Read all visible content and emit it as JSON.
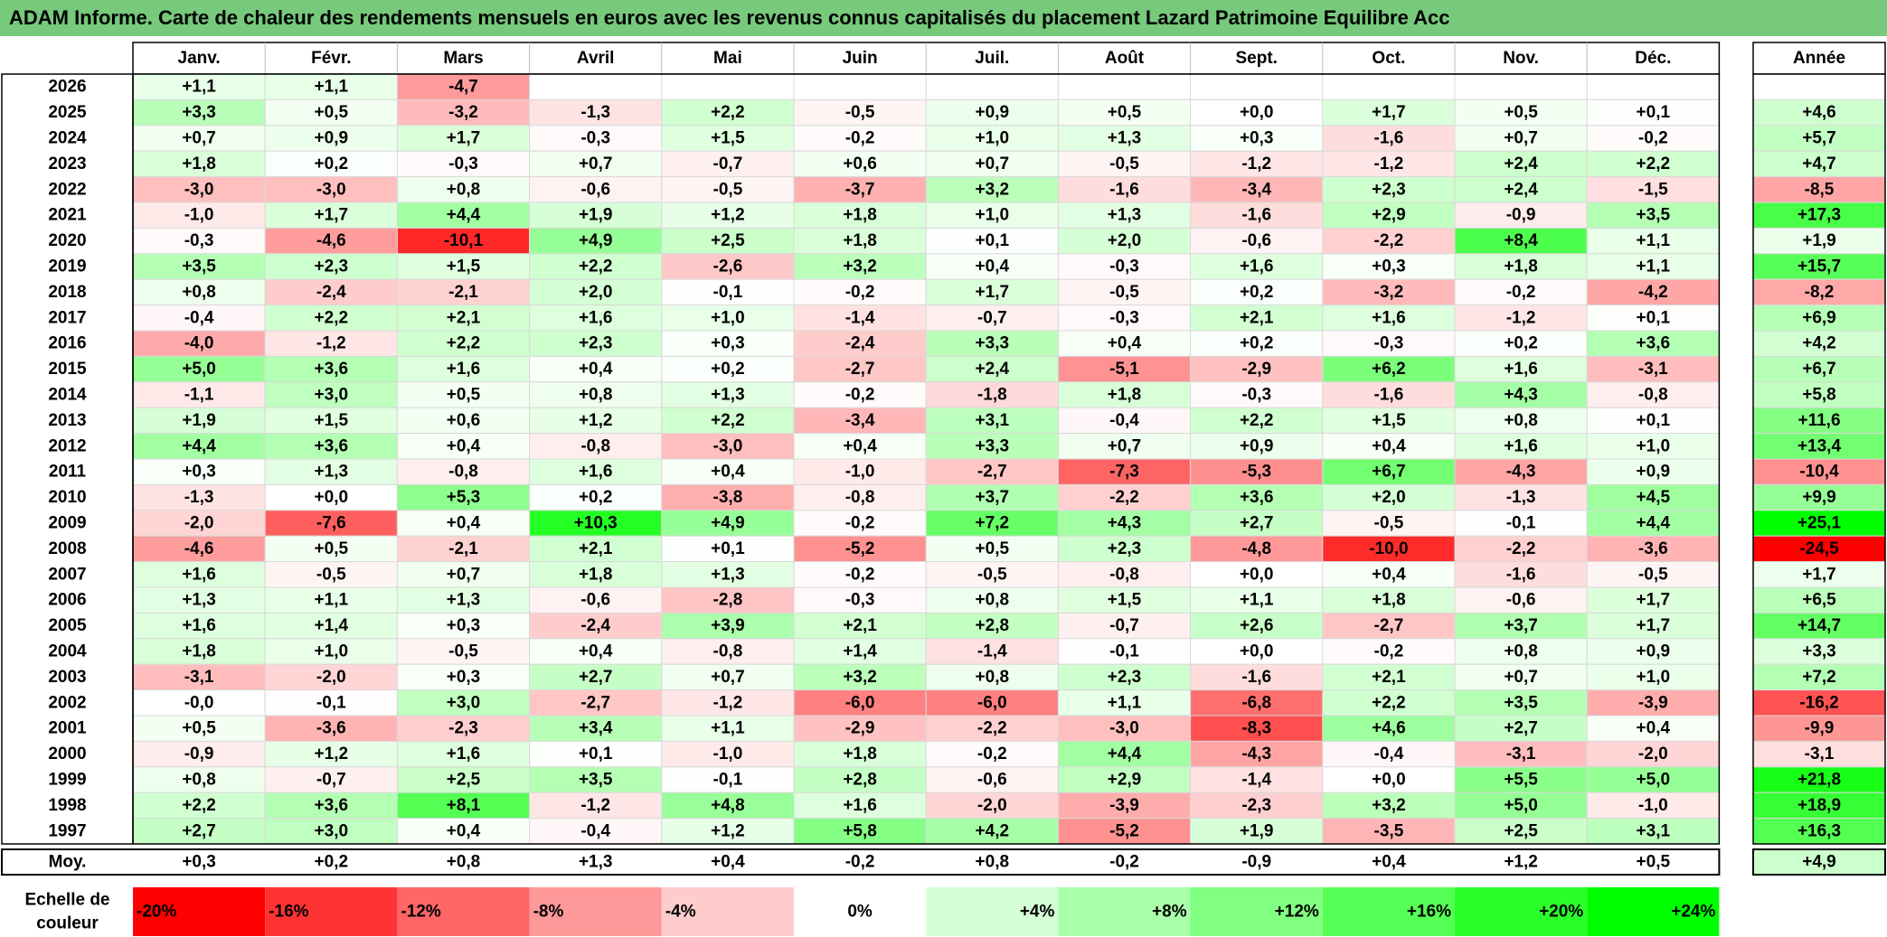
{
  "title": "ADAM Informe. Carte de chaleur des rendements mensuels en euros avec les revenus connus capitalisés du placement Lazard Patrimoine Equilibre Acc",
  "month_headers": [
    "Janv.",
    "Févr.",
    "Mars",
    "Avril",
    "Mai",
    "Juin",
    "Juil.",
    "Août",
    "Sept.",
    "Oct.",
    "Nov.",
    "Déc."
  ],
  "year_header": "Année",
  "avg_label": "Moy.",
  "scale_label": "Echelle de couleur",
  "colors": {
    "title_bg": "#77c97c",
    "negative_max": "#ff0000",
    "neutral": "#ffffff",
    "positive_max": "#00ff00"
  },
  "chart_data": {
    "type": "heatmap",
    "unit": "%",
    "rows": [
      {
        "year": "2026",
        "months": [
          "+1,1",
          "+1,1",
          "-4,7",
          "",
          "",
          "",
          "",
          "",
          "",
          "",
          "",
          ""
        ],
        "annual": ""
      },
      {
        "year": "2025",
        "months": [
          "+3,3",
          "+0,5",
          "-3,2",
          "-1,3",
          "+2,2",
          "-0,5",
          "+0,9",
          "+0,5",
          "+0,0",
          "+1,7",
          "+0,5",
          "+0,1"
        ],
        "annual": "+4,6"
      },
      {
        "year": "2024",
        "months": [
          "+0,7",
          "+0,9",
          "+1,7",
          "-0,3",
          "+1,5",
          "-0,2",
          "+1,0",
          "+1,3",
          "+0,3",
          "-1,6",
          "+0,7",
          "-0,2"
        ],
        "annual": "+5,7"
      },
      {
        "year": "2023",
        "months": [
          "+1,8",
          "+0,2",
          "-0,3",
          "+0,7",
          "-0,7",
          "+0,6",
          "+0,7",
          "-0,5",
          "-1,2",
          "-1,2",
          "+2,4",
          "+2,2"
        ],
        "annual": "+4,7"
      },
      {
        "year": "2022",
        "months": [
          "-3,0",
          "-3,0",
          "+0,8",
          "-0,6",
          "-0,5",
          "-3,7",
          "+3,2",
          "-1,6",
          "-3,4",
          "+2,3",
          "+2,4",
          "-1,5"
        ],
        "annual": "-8,5"
      },
      {
        "year": "2021",
        "months": [
          "-1,0",
          "+1,7",
          "+4,4",
          "+1,9",
          "+1,2",
          "+1,8",
          "+1,0",
          "+1,3",
          "-1,6",
          "+2,9",
          "-0,9",
          "+3,5"
        ],
        "annual": "+17,3"
      },
      {
        "year": "2020",
        "months": [
          "-0,3",
          "-4,6",
          "-10,1",
          "+4,9",
          "+2,5",
          "+1,8",
          "+0,1",
          "+2,0",
          "-0,6",
          "-2,2",
          "+8,4",
          "+1,1"
        ],
        "annual": "+1,9"
      },
      {
        "year": "2019",
        "months": [
          "+3,5",
          "+2,3",
          "+1,5",
          "+2,2",
          "-2,6",
          "+3,2",
          "+0,4",
          "-0,3",
          "+1,6",
          "+0,3",
          "+1,8",
          "+1,1"
        ],
        "annual": "+15,7"
      },
      {
        "year": "2018",
        "months": [
          "+0,8",
          "-2,4",
          "-2,1",
          "+2,0",
          "-0,1",
          "-0,2",
          "+1,7",
          "-0,5",
          "+0,2",
          "-3,2",
          "-0,2",
          "-4,2"
        ],
        "annual": "-8,2"
      },
      {
        "year": "2017",
        "months": [
          "-0,4",
          "+2,2",
          "+2,1",
          "+1,6",
          "+1,0",
          "-1,4",
          "-0,7",
          "-0,3",
          "+2,1",
          "+1,6",
          "-1,2",
          "+0,1"
        ],
        "annual": "+6,9"
      },
      {
        "year": "2016",
        "months": [
          "-4,0",
          "-1,2",
          "+2,2",
          "+2,3",
          "+0,3",
          "-2,4",
          "+3,3",
          "+0,4",
          "+0,2",
          "-0,3",
          "+0,2",
          "+3,6"
        ],
        "annual": "+4,2"
      },
      {
        "year": "2015",
        "months": [
          "+5,0",
          "+3,6",
          "+1,6",
          "+0,4",
          "+0,2",
          "-2,7",
          "+2,4",
          "-5,1",
          "-2,9",
          "+6,2",
          "+1,6",
          "-3,1"
        ],
        "annual": "+6,7"
      },
      {
        "year": "2014",
        "months": [
          "-1,1",
          "+3,0",
          "+0,5",
          "+0,8",
          "+1,3",
          "-0,2",
          "-1,8",
          "+1,8",
          "-0,3",
          "-1,6",
          "+4,3",
          "-0,8"
        ],
        "annual": "+5,8"
      },
      {
        "year": "2013",
        "months": [
          "+1,9",
          "+1,5",
          "+0,6",
          "+1,2",
          "+2,2",
          "-3,4",
          "+3,1",
          "-0,4",
          "+2,2",
          "+1,5",
          "+0,8",
          "+0,1"
        ],
        "annual": "+11,6"
      },
      {
        "year": "2012",
        "months": [
          "+4,4",
          "+3,6",
          "+0,4",
          "-0,8",
          "-3,0",
          "+0,4",
          "+3,3",
          "+0,7",
          "+0,9",
          "+0,4",
          "+1,6",
          "+1,0"
        ],
        "annual": "+13,4"
      },
      {
        "year": "2011",
        "months": [
          "+0,3",
          "+1,3",
          "-0,8",
          "+1,6",
          "+0,4",
          "-1,0",
          "-2,7",
          "-7,3",
          "-5,3",
          "+6,7",
          "-4,3",
          "+0,9"
        ],
        "annual": "-10,4"
      },
      {
        "year": "2010",
        "months": [
          "-1,3",
          "+0,0",
          "+5,3",
          "+0,2",
          "-3,8",
          "-0,8",
          "+3,7",
          "-2,2",
          "+3,6",
          "+2,0",
          "-1,3",
          "+4,5"
        ],
        "annual": "+9,9"
      },
      {
        "year": "2009",
        "months": [
          "-2,0",
          "-7,6",
          "+0,4",
          "+10,3",
          "+4,9",
          "-0,2",
          "+7,2",
          "+4,3",
          "+2,7",
          "-0,5",
          "-0,1",
          "+4,4"
        ],
        "annual": "+25,1"
      },
      {
        "year": "2008",
        "months": [
          "-4,6",
          "+0,5",
          "-2,1",
          "+2,1",
          "+0,1",
          "-5,2",
          "+0,5",
          "+2,3",
          "-4,8",
          "-10,0",
          "-2,2",
          "-3,6"
        ],
        "annual": "-24,5"
      },
      {
        "year": "2007",
        "months": [
          "+1,6",
          "-0,5",
          "+0,7",
          "+1,8",
          "+1,3",
          "-0,2",
          "-0,5",
          "-0,8",
          "+0,0",
          "+0,4",
          "-1,6",
          "-0,5"
        ],
        "annual": "+1,7"
      },
      {
        "year": "2006",
        "months": [
          "+1,3",
          "+1,1",
          "+1,3",
          "-0,6",
          "-2,8",
          "-0,3",
          "+0,8",
          "+1,5",
          "+1,1",
          "+1,8",
          "-0,6",
          "+1,7"
        ],
        "annual": "+6,5"
      },
      {
        "year": "2005",
        "months": [
          "+1,6",
          "+1,4",
          "+0,3",
          "-2,4",
          "+3,9",
          "+2,1",
          "+2,8",
          "-0,7",
          "+2,6",
          "-2,7",
          "+3,7",
          "+1,7"
        ],
        "annual": "+14,7"
      },
      {
        "year": "2004",
        "months": [
          "+1,8",
          "+1,0",
          "-0,5",
          "+0,4",
          "-0,8",
          "+1,4",
          "-1,4",
          "-0,1",
          "+0,0",
          "-0,2",
          "+0,8",
          "+0,9"
        ],
        "annual": "+3,3"
      },
      {
        "year": "2003",
        "months": [
          "-3,1",
          "-2,0",
          "+0,3",
          "+2,7",
          "+0,7",
          "+3,2",
          "+0,8",
          "+2,3",
          "-1,6",
          "+2,1",
          "+0,7",
          "+1,0"
        ],
        "annual": "+7,2"
      },
      {
        "year": "2002",
        "months": [
          "-0,0",
          "-0,1",
          "+3,0",
          "-2,7",
          "-1,2",
          "-6,0",
          "-6,0",
          "+1,1",
          "-6,8",
          "+2,2",
          "+3,5",
          "-3,9"
        ],
        "annual": "-16,2"
      },
      {
        "year": "2001",
        "months": [
          "+0,5",
          "-3,6",
          "-2,3",
          "+3,4",
          "+1,1",
          "-2,9",
          "-2,2",
          "-3,0",
          "-8,3",
          "+4,6",
          "+2,7",
          "+0,4"
        ],
        "annual": "-9,9"
      },
      {
        "year": "2000",
        "months": [
          "-0,9",
          "+1,2",
          "+1,6",
          "+0,1",
          "-1,0",
          "+1,8",
          "-0,2",
          "+4,4",
          "-4,3",
          "-0,4",
          "-3,1",
          "-2,0"
        ],
        "annual": "-3,1"
      },
      {
        "year": "1999",
        "months": [
          "+0,8",
          "-0,7",
          "+2,5",
          "+3,5",
          "-0,1",
          "+2,8",
          "-0,6",
          "+2,9",
          "-1,4",
          "+0,0",
          "+5,5",
          "+5,0"
        ],
        "annual": "+21,8"
      },
      {
        "year": "1998",
        "months": [
          "+2,2",
          "+3,6",
          "+8,1",
          "-1,2",
          "+4,8",
          "+1,6",
          "-2,0",
          "-3,9",
          "-2,3",
          "+3,2",
          "+5,0",
          "-1,0"
        ],
        "annual": "+18,9"
      },
      {
        "year": "1997",
        "months": [
          "+2,7",
          "+3,0",
          "+0,4",
          "-0,4",
          "+1,2",
          "+5,8",
          "+4,2",
          "-5,2",
          "+1,9",
          "-3,5",
          "+2,5",
          "+3,1"
        ],
        "annual": "+16,3"
      }
    ],
    "averages": {
      "months": [
        "+0,3",
        "+0,2",
        "+0,8",
        "+1,3",
        "+0,4",
        "-0,2",
        "+0,8",
        "-0,2",
        "-0,9",
        "+0,4",
        "+1,2",
        "+0,5"
      ],
      "annual": "+4,9"
    },
    "scale": {
      "labels": [
        "-20%",
        "-16%",
        "-12%",
        "-8%",
        "-4%",
        "0%",
        "+4%",
        "+8%",
        "+12%",
        "+16%",
        "+20%",
        "+24%"
      ],
      "values": [
        -20,
        -16,
        -12,
        -8,
        -4,
        0,
        4,
        8,
        12,
        16,
        20,
        24
      ]
    }
  }
}
